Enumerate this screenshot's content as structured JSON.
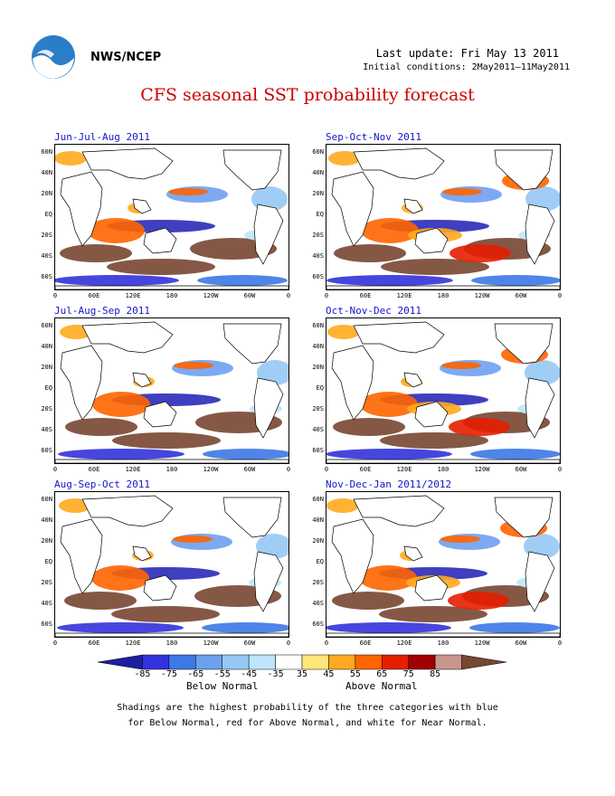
{
  "header": {
    "org": "NWS/NCEP",
    "last_update": "Last update: Fri May 13 2011",
    "initial_conditions": "Initial conditions: 2May2011–11May2011",
    "title": "CFS seasonal SST probability forecast"
  },
  "lat_labels": [
    "60N",
    "40N",
    "20N",
    "EQ",
    "20S",
    "40S",
    "60S"
  ],
  "lon_labels": [
    "0",
    "60E",
    "120E",
    "180",
    "120W",
    "60W",
    "0"
  ],
  "panels": [
    {
      "title": "Jun-Jul-Aug 2011"
    },
    {
      "title": "Sep-Oct-Nov 2011"
    },
    {
      "title": "Jul-Aug-Sep 2011"
    },
    {
      "title": "Oct-Nov-Dec 2011"
    },
    {
      "title": "Aug-Sep-Oct 2011"
    },
    {
      "title": "Nov-Dec-Jan 2011/2012"
    }
  ],
  "colorbar": {
    "ticks": [
      "-85",
      "-75",
      "-65",
      "-55",
      "-45",
      "-35",
      "35",
      "45",
      "55",
      "65",
      "75",
      "85"
    ],
    "colors": [
      "#1e1ea0",
      "#3232dc",
      "#3c78e6",
      "#6ea0f0",
      "#96c8f5",
      "#bee6fa",
      "#ffffff",
      "#ffe678",
      "#ffaa1e",
      "#ff6400",
      "#e61e00",
      "#a00000",
      "#c8968c",
      "#784632"
    ],
    "below_label": "Below Normal",
    "above_label": "Above Normal"
  },
  "note": {
    "line1": "Shadings are the highest probability of the three categories with blue",
    "line2": "for Below Normal, red for Above Normal, and white for Near Normal."
  }
}
